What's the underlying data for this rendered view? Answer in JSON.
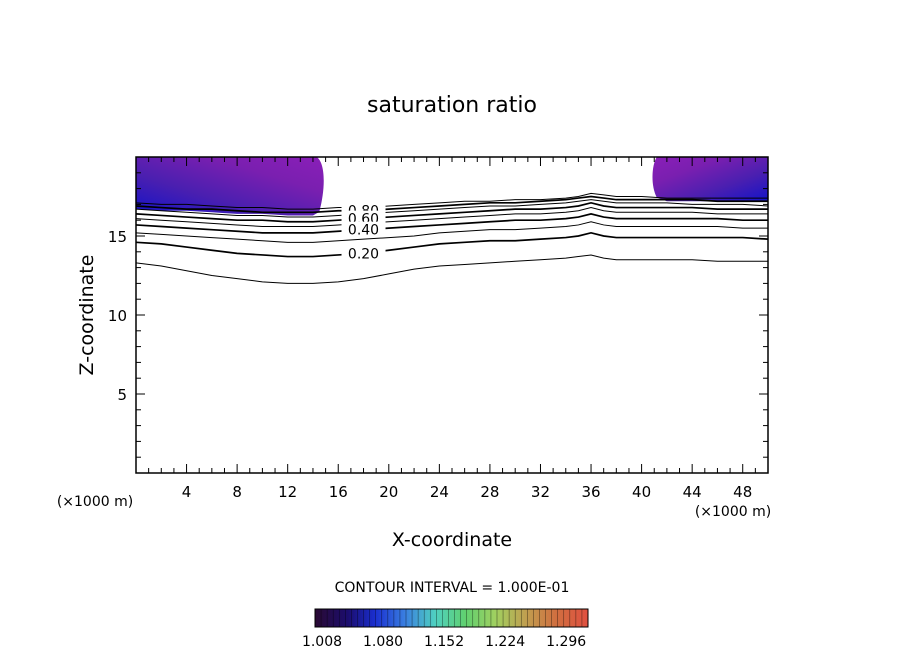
{
  "chart_data": {
    "type": "contour",
    "title": "saturation ratio",
    "xlabel": "X-coordinate",
    "ylabel": "Z-coordinate",
    "x_unit": "(×1000 m)",
    "xlim": [
      0,
      50
    ],
    "ylim": [
      0,
      20
    ],
    "x_ticks": [
      4,
      8,
      12,
      16,
      20,
      24,
      28,
      32,
      36,
      40,
      44,
      48
    ],
    "y_ticks": [
      5,
      10,
      15
    ],
    "contour_interval_label": "CONTOUR INTERVAL = 1.000E-01",
    "contour_labels": [
      "0.80",
      "0.60",
      "0.40",
      "0.20"
    ],
    "contour_lines": [
      {
        "level": 0.1,
        "x": [
          0,
          2,
          4,
          6,
          8,
          10,
          12,
          14,
          16,
          18,
          20,
          22,
          24,
          26,
          28,
          30,
          32,
          34,
          35,
          36,
          37,
          38,
          40,
          42,
          44,
          46,
          48,
          50
        ],
        "z": [
          13.3,
          13.1,
          12.8,
          12.5,
          12.3,
          12.1,
          12.0,
          12.0,
          12.1,
          12.3,
          12.6,
          12.9,
          13.1,
          13.2,
          13.3,
          13.4,
          13.5,
          13.6,
          13.7,
          13.8,
          13.6,
          13.5,
          13.5,
          13.5,
          13.5,
          13.4,
          13.4,
          13.4
        ]
      },
      {
        "level": 0.2,
        "x": [
          0,
          2,
          4,
          6,
          8,
          10,
          12,
          14,
          16,
          18,
          20,
          22,
          24,
          26,
          28,
          30,
          32,
          34,
          35,
          36,
          37,
          38,
          40,
          42,
          44,
          46,
          48,
          50
        ],
        "z": [
          14.6,
          14.5,
          14.3,
          14.1,
          13.9,
          13.8,
          13.7,
          13.7,
          13.8,
          13.9,
          14.1,
          14.3,
          14.5,
          14.6,
          14.7,
          14.7,
          14.8,
          14.9,
          15.0,
          15.2,
          15.0,
          14.9,
          14.9,
          14.9,
          14.9,
          14.9,
          14.9,
          14.8
        ]
      },
      {
        "level": 0.3,
        "x": [
          0,
          2,
          4,
          6,
          8,
          10,
          12,
          14,
          16,
          18,
          20,
          22,
          24,
          26,
          28,
          30,
          32,
          34,
          35,
          36,
          37,
          38,
          40,
          42,
          44,
          46,
          48,
          50
        ],
        "z": [
          15.2,
          15.1,
          15.0,
          14.9,
          14.8,
          14.7,
          14.6,
          14.6,
          14.7,
          14.8,
          14.9,
          15.0,
          15.2,
          15.3,
          15.4,
          15.4,
          15.5,
          15.6,
          15.7,
          15.9,
          15.7,
          15.6,
          15.6,
          15.6,
          15.6,
          15.6,
          15.5,
          15.5
        ]
      },
      {
        "level": 0.4,
        "x": [
          0,
          2,
          4,
          6,
          8,
          10,
          12,
          14,
          16,
          18,
          20,
          22,
          24,
          26,
          28,
          30,
          32,
          34,
          35,
          36,
          37,
          38,
          40,
          42,
          44,
          46,
          48,
          50
        ],
        "z": [
          15.7,
          15.6,
          15.5,
          15.4,
          15.3,
          15.2,
          15.2,
          15.2,
          15.3,
          15.4,
          15.5,
          15.6,
          15.7,
          15.8,
          15.9,
          16.0,
          16.0,
          16.1,
          16.2,
          16.4,
          16.2,
          16.1,
          16.1,
          16.1,
          16.1,
          16.1,
          16.0,
          16.0
        ]
      },
      {
        "level": 0.5,
        "x": [
          0,
          2,
          4,
          6,
          8,
          10,
          12,
          14,
          16,
          18,
          20,
          22,
          24,
          26,
          28,
          30,
          32,
          34,
          35,
          36,
          37,
          38,
          40,
          42,
          44,
          46,
          48,
          50
        ],
        "z": [
          16.1,
          16.0,
          15.9,
          15.8,
          15.7,
          15.6,
          15.6,
          15.6,
          15.7,
          15.8,
          15.9,
          16.0,
          16.1,
          16.2,
          16.3,
          16.4,
          16.4,
          16.5,
          16.6,
          16.8,
          16.6,
          16.5,
          16.5,
          16.5,
          16.5,
          16.4,
          16.4,
          16.4
        ]
      },
      {
        "level": 0.6,
        "x": [
          0,
          2,
          4,
          6,
          8,
          10,
          12,
          14,
          16,
          18,
          20,
          22,
          24,
          26,
          28,
          30,
          32,
          34,
          35,
          36,
          37,
          38,
          40,
          42,
          44,
          46,
          48,
          50
        ],
        "z": [
          16.4,
          16.3,
          16.2,
          16.1,
          16.0,
          16.0,
          15.9,
          15.9,
          16.0,
          16.1,
          16.2,
          16.3,
          16.4,
          16.5,
          16.6,
          16.7,
          16.7,
          16.8,
          16.9,
          17.1,
          16.9,
          16.8,
          16.8,
          16.8,
          16.8,
          16.7,
          16.7,
          16.7
        ]
      },
      {
        "level": 0.7,
        "x": [
          0,
          2,
          4,
          6,
          8,
          10,
          12,
          14,
          16,
          18,
          20,
          22,
          24,
          26,
          28,
          30,
          32,
          34,
          35,
          36,
          37,
          38,
          40,
          42,
          44,
          46,
          48,
          50
        ],
        "z": [
          16.7,
          16.6,
          16.5,
          16.4,
          16.3,
          16.3,
          16.2,
          16.2,
          16.3,
          16.4,
          16.5,
          16.6,
          16.7,
          16.8,
          16.9,
          16.9,
          17.0,
          17.1,
          17.2,
          17.3,
          17.2,
          17.1,
          17.1,
          17.1,
          17.0,
          17.0,
          17.0,
          16.9
        ]
      },
      {
        "level": 0.8,
        "x": [
          0,
          2,
          4,
          6,
          8,
          10,
          12,
          14,
          16,
          18,
          20,
          22,
          24,
          26,
          28,
          30,
          32,
          34,
          35,
          36,
          37,
          38,
          40,
          42,
          44,
          46,
          48,
          50
        ],
        "z": [
          16.9,
          16.8,
          16.7,
          16.7,
          16.6,
          16.5,
          16.5,
          16.5,
          16.6,
          16.6,
          16.7,
          16.8,
          16.9,
          17.0,
          17.1,
          17.1,
          17.2,
          17.3,
          17.4,
          17.5,
          17.4,
          17.3,
          17.3,
          17.3,
          17.3,
          17.2,
          17.2,
          17.2
        ]
      },
      {
        "level": 0.9,
        "x": [
          0,
          2,
          4,
          6,
          8,
          10,
          12,
          14,
          16,
          18,
          20,
          22,
          24,
          26,
          28,
          30,
          32,
          34,
          35,
          36,
          37,
          38,
          40,
          42,
          44,
          46,
          48,
          50
        ],
        "z": [
          17.1,
          17.0,
          17.0,
          16.9,
          16.8,
          16.8,
          16.7,
          16.7,
          16.8,
          16.8,
          16.9,
          17.0,
          17.1,
          17.2,
          17.2,
          17.3,
          17.3,
          17.4,
          17.5,
          17.7,
          17.6,
          17.5,
          17.5,
          17.4,
          17.4,
          17.4,
          17.4,
          17.4
        ]
      }
    ],
    "shaded_regions": [
      {
        "x": [
          0,
          14.5
        ],
        "z_top": 20,
        "description_levels": "above ~16.5"
      },
      {
        "x": [
          41,
          50
        ],
        "z_top": 20
      }
    ],
    "colorbar": {
      "labels": [
        "1.008",
        "1.080",
        "1.152",
        "1.224",
        "1.296"
      ],
      "range": [
        1.008,
        1.33
      ],
      "colors": [
        "#2a0a33",
        "#1b0d6e",
        "#1a2fd0",
        "#3a7fe0",
        "#4fd0c0",
        "#60d070",
        "#a0d060",
        "#c0a050",
        "#d07040",
        "#e05040"
      ]
    }
  }
}
